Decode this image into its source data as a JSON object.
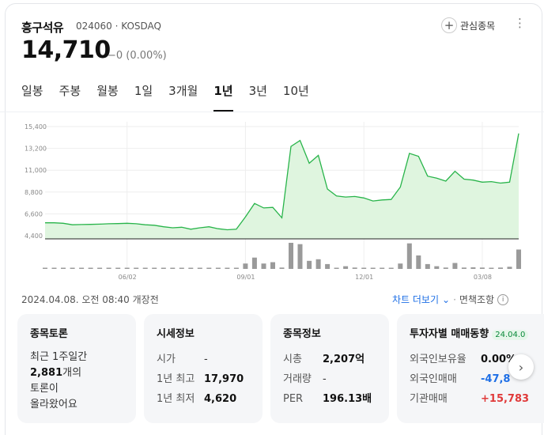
{
  "header": {
    "stock_name": "흥구석유",
    "stock_code": "024060",
    "market": "KOSDAQ",
    "code_market": "024060 · KOSDAQ",
    "price": "14,710",
    "change": "−0 (0.00%)",
    "favorite_label": "관심종목",
    "more_icon": "⋮"
  },
  "tabs": [
    {
      "label": "일봉",
      "active": false
    },
    {
      "label": "주봉",
      "active": false
    },
    {
      "label": "월봉",
      "active": false
    },
    {
      "label": "1일",
      "active": false
    },
    {
      "label": "3개월",
      "active": false
    },
    {
      "label": "1년",
      "active": true
    },
    {
      "label": "3년",
      "active": false
    },
    {
      "label": "10년",
      "active": false
    }
  ],
  "chart_data": {
    "type": "area",
    "title": "",
    "xlabel": "",
    "ylabel": "",
    "ylim": [
      4400,
      15400
    ],
    "y_ticks": [
      "15,400",
      "13,200",
      "11,000",
      "8,800",
      "6,600",
      "4,400"
    ],
    "x_ticks": [
      "06/02",
      "09/01",
      "12/01",
      "03/08"
    ],
    "colors": {
      "line": "#28b44a",
      "fill": "#dff5df",
      "volume": "#9a9a9a"
    },
    "series": [
      {
        "values": [
          5700,
          5700,
          5650,
          5500,
          5520,
          5540,
          5560,
          5600,
          5620,
          5650,
          5600,
          5500,
          5450,
          5300,
          5200,
          5250,
          5050,
          5200,
          5300,
          5100,
          5000,
          5050,
          6300,
          7650,
          7200,
          7250,
          6200,
          13400,
          14000,
          11700,
          12500,
          9100,
          8400,
          8300,
          8350,
          8200,
          7900,
          8000,
          8050,
          9300,
          12700,
          12400,
          10400,
          10200,
          9900,
          10900,
          10100,
          10000,
          9800,
          9850,
          9700,
          9800,
          14710
        ]
      },
      {
        "name": "volume",
        "values": [
          0.03,
          0.01,
          0.01,
          0.01,
          0.01,
          0.01,
          0.02,
          0.01,
          0.01,
          0.01,
          0.01,
          0.01,
          0.01,
          0.01,
          0.01,
          0.01,
          0.01,
          0.01,
          0.01,
          0.01,
          0.01,
          0.02,
          0.2,
          0.42,
          0.2,
          0.25,
          0.05,
          0.97,
          0.92,
          0.3,
          0.36,
          0.18,
          0.04,
          0.1,
          0.05,
          0.03,
          0.02,
          0.02,
          0.02,
          0.2,
          0.95,
          0.5,
          0.18,
          0.1,
          0.05,
          0.22,
          0.05,
          0.06,
          0.05,
          0.04,
          0.05,
          0.08,
          0.72
        ]
      }
    ]
  },
  "timestamp": "2024.04.08. 오전 08:40 개장전",
  "links": {
    "chart_more": "차트 더보기",
    "chart_more_arrow": "⌄",
    "separator": "·",
    "disclaimer": "면책조항",
    "info_icon": "i"
  },
  "panels": {
    "discussion": {
      "title": "종목토론",
      "line1": "최근 1주일간",
      "count": "2,881",
      "count_suffix": "개의",
      "line3": "토론이",
      "line4": "올라왔어요"
    },
    "market_info": {
      "title": "시세정보",
      "rows": [
        {
          "k": "시가",
          "v": "-"
        },
        {
          "k": "1년 최고",
          "v": "17,970"
        },
        {
          "k": "1년 최저",
          "v": "4,620"
        }
      ]
    },
    "stock_info": {
      "title": "종목정보",
      "rows": [
        {
          "k": "시총",
          "v": "2,207억"
        },
        {
          "k": "거래량",
          "v": "-"
        },
        {
          "k": "PER",
          "v": "196.13배"
        }
      ]
    },
    "investor": {
      "title": "투자자별 매매동향",
      "date_badge": "24.04.0",
      "rows": [
        {
          "k": "외국인보유율",
          "v": "0.00%"
        },
        {
          "k": "외국인매매",
          "v": "-47,8"
        },
        {
          "k": "기관매매",
          "v": "+15,783"
        }
      ]
    }
  },
  "next_icon": "›"
}
